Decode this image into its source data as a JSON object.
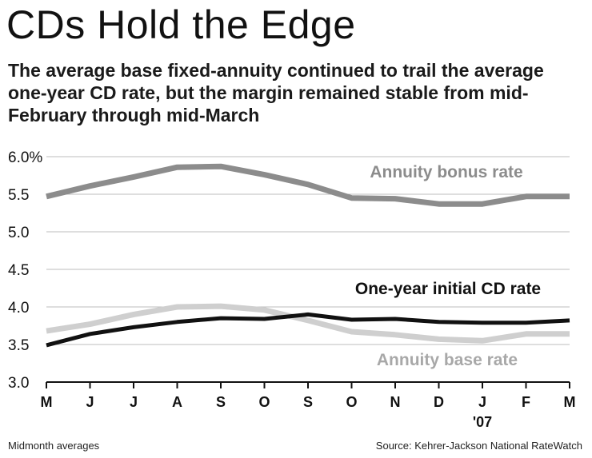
{
  "title": "CDs Hold the Edge",
  "subtitle": "The average base fixed-annuity continued to trail the average one-year CD rate, but the margin remained stable from mid-February through mid-March",
  "footnote": "Midmonth averages",
  "source": "Source: Kehrer-Jackson National RateWatch",
  "chart_data": {
    "type": "line",
    "categories": [
      "M",
      "J",
      "J",
      "A",
      "S",
      "O",
      "S",
      "O",
      "N",
      "D",
      "J",
      "F",
      "M"
    ],
    "year_marker": {
      "category_index": 10,
      "label": "'07"
    },
    "ylim": [
      3.0,
      6.0
    ],
    "y_ticks": [
      {
        "value": 6.0,
        "label": "6.0%"
      },
      {
        "value": 5.5,
        "label": "5.5"
      },
      {
        "value": 5.0,
        "label": "5.0"
      },
      {
        "value": 4.5,
        "label": "4.5"
      },
      {
        "value": 4.0,
        "label": "4.0"
      },
      {
        "value": 3.5,
        "label": "3.5"
      },
      {
        "value": 3.0,
        "label": "3.0"
      }
    ],
    "grid": true,
    "series": [
      {
        "name": "Annuity bonus rate",
        "color": "#8c8c8c",
        "label_color": "#8c8c8c",
        "values": [
          5.47,
          5.61,
          5.73,
          5.86,
          5.87,
          5.76,
          5.63,
          5.45,
          5.44,
          5.37,
          5.37,
          5.47,
          5.47
        ]
      },
      {
        "name": "Annuity base rate",
        "color": "#cfcfcf",
        "label_color": "#a8a8a8",
        "values": [
          3.68,
          3.77,
          3.9,
          4.0,
          4.01,
          3.96,
          3.82,
          3.67,
          3.63,
          3.57,
          3.55,
          3.64,
          3.64
        ]
      },
      {
        "name": "One-year initial CD rate",
        "color": "#111111",
        "label_color": "#111111",
        "values": [
          3.49,
          3.64,
          3.73,
          3.8,
          3.85,
          3.84,
          3.9,
          3.83,
          3.84,
          3.8,
          3.79,
          3.79,
          3.82
        ]
      }
    ]
  }
}
